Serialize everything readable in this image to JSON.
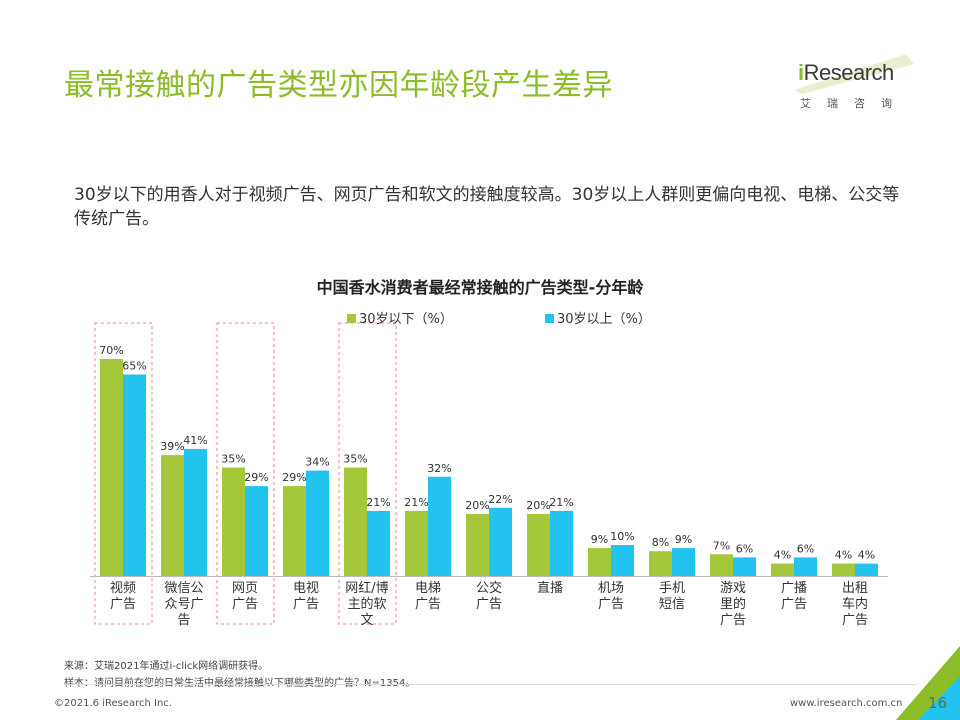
{
  "page": {
    "title": "最常接触的广告类型亦因年龄段产生差异",
    "subtitle": "30岁以下的用香人对于视频广告、网页广告和软文的接触度较高。30岁以上人群则更偏向电视、电梯、公交等传统广告。",
    "brand": {
      "wordmark_i": "i",
      "wordmark_rest": "Research",
      "chinese": "艾瑞咨询"
    },
    "colors": {
      "accent": "#8cbc28",
      "series1": "#a5c83a",
      "series2": "#22c3ef",
      "highlight_box": "#f08a8a"
    },
    "source_note": "来源：艾瑞2021年通过i-click网络调研获得。",
    "sample_note": "样本：请问目前在您的日常生活中最经常接触以下哪些类型的广告？N=1354。",
    "copyright": "©2021.6 iResearch Inc.",
    "website": "www.iresearch.com.cn",
    "page_number": "16"
  },
  "chart_data": {
    "type": "bar",
    "title": "中国香水消费者最经常接触的广告类型-分年龄",
    "categories": [
      "视频广告",
      "微信公众号广告",
      "网页广告",
      "电视广告",
      "网红/博主的软文",
      "电梯广告",
      "公交广告",
      "直播",
      "机场广告",
      "手机短信",
      "游戏里的广告",
      "广播广告",
      "出租车内广告"
    ],
    "category_label_lines": [
      [
        "视频",
        "广告"
      ],
      [
        "微信公",
        "众号广",
        "告"
      ],
      [
        "网页",
        "广告"
      ],
      [
        "电视",
        "广告"
      ],
      [
        "网红/博",
        "主的软",
        "文"
      ],
      [
        "电梯",
        "广告"
      ],
      [
        "公交",
        "广告"
      ],
      [
        "直播"
      ],
      [
        "机场",
        "广告"
      ],
      [
        "手机",
        "短信"
      ],
      [
        "游戏",
        "里的",
        "广告"
      ],
      [
        "广播",
        "广告"
      ],
      [
        "出租",
        "车内",
        "广告"
      ]
    ],
    "series": [
      {
        "name": "30岁以下（%）",
        "values": [
          70,
          39,
          35,
          29,
          35,
          21,
          20,
          20,
          9,
          8,
          7,
          4,
          4
        ],
        "color": "#a5c83a"
      },
      {
        "name": "30岁以上（%）",
        "values": [
          65,
          41,
          29,
          34,
          21,
          32,
          22,
          21,
          10,
          9,
          6,
          6,
          4
        ],
        "color": "#22c3ef"
      }
    ],
    "highlighted_categories": [
      "视频广告",
      "网页广告",
      "网红/博主的软文"
    ],
    "legend_position": "top",
    "ylim": [
      0,
      80
    ],
    "grid": false
  }
}
